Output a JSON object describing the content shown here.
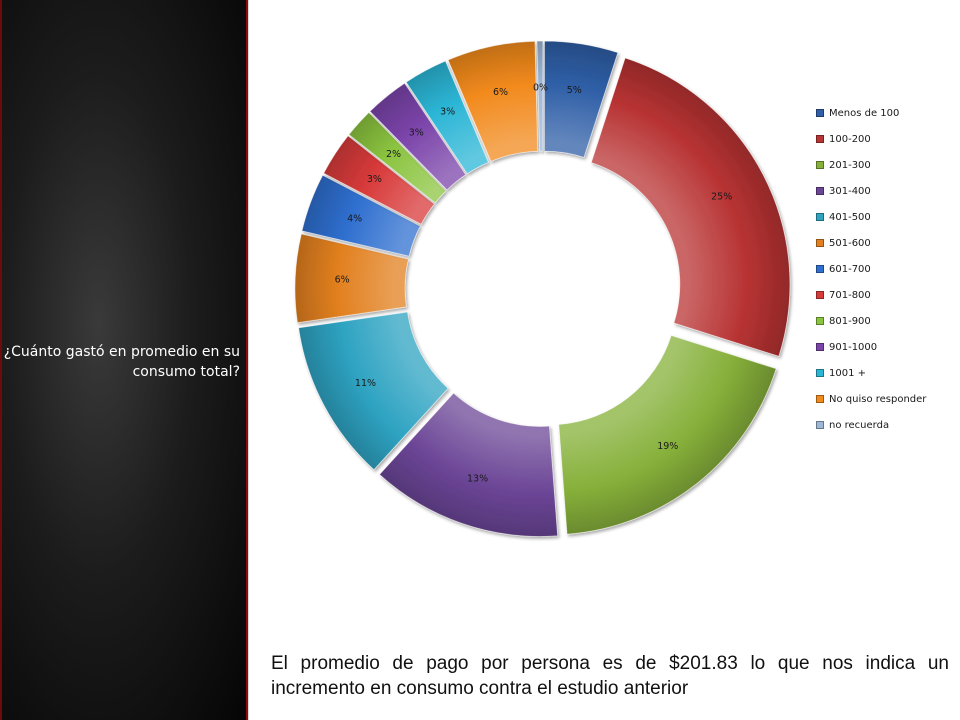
{
  "sidebar": {
    "question": "¿Cuánto gastó en promedio en su consumo total?"
  },
  "conclusion": "El promedio de pago por persona es de $201.83 lo que nos indica un incremento en consumo contra el estudio anterior",
  "chart_data": {
    "type": "pie",
    "style": "exploded doughnut",
    "legend_position": "right",
    "categories": [
      "Menos de 100",
      "100-200",
      "201-300",
      "301-400",
      "401-500",
      "501-600",
      "601-700",
      "701-800",
      "801-900",
      "901-1000",
      "1001 +",
      "No quiso responder",
      "no recuerda"
    ],
    "values": [
      5,
      25,
      19,
      13,
      11,
      6,
      4,
      3,
      2,
      3,
      3,
      6,
      0.4
    ],
    "labels": [
      "5%",
      "25%",
      "19%",
      "13%",
      "11%",
      "6%",
      "4%",
      "3%",
      "2%",
      "3%",
      "3%",
      "6%",
      "0%"
    ],
    "colors": [
      "#2f5fa7",
      "#b83333",
      "#86b03a",
      "#6b4596",
      "#2ea3c2",
      "#e2801f",
      "#2f6fcf",
      "#d83a3a",
      "#8bc43f",
      "#7b44aa",
      "#2cb6d6",
      "#f28a1c",
      "#9fb7d6"
    ]
  }
}
